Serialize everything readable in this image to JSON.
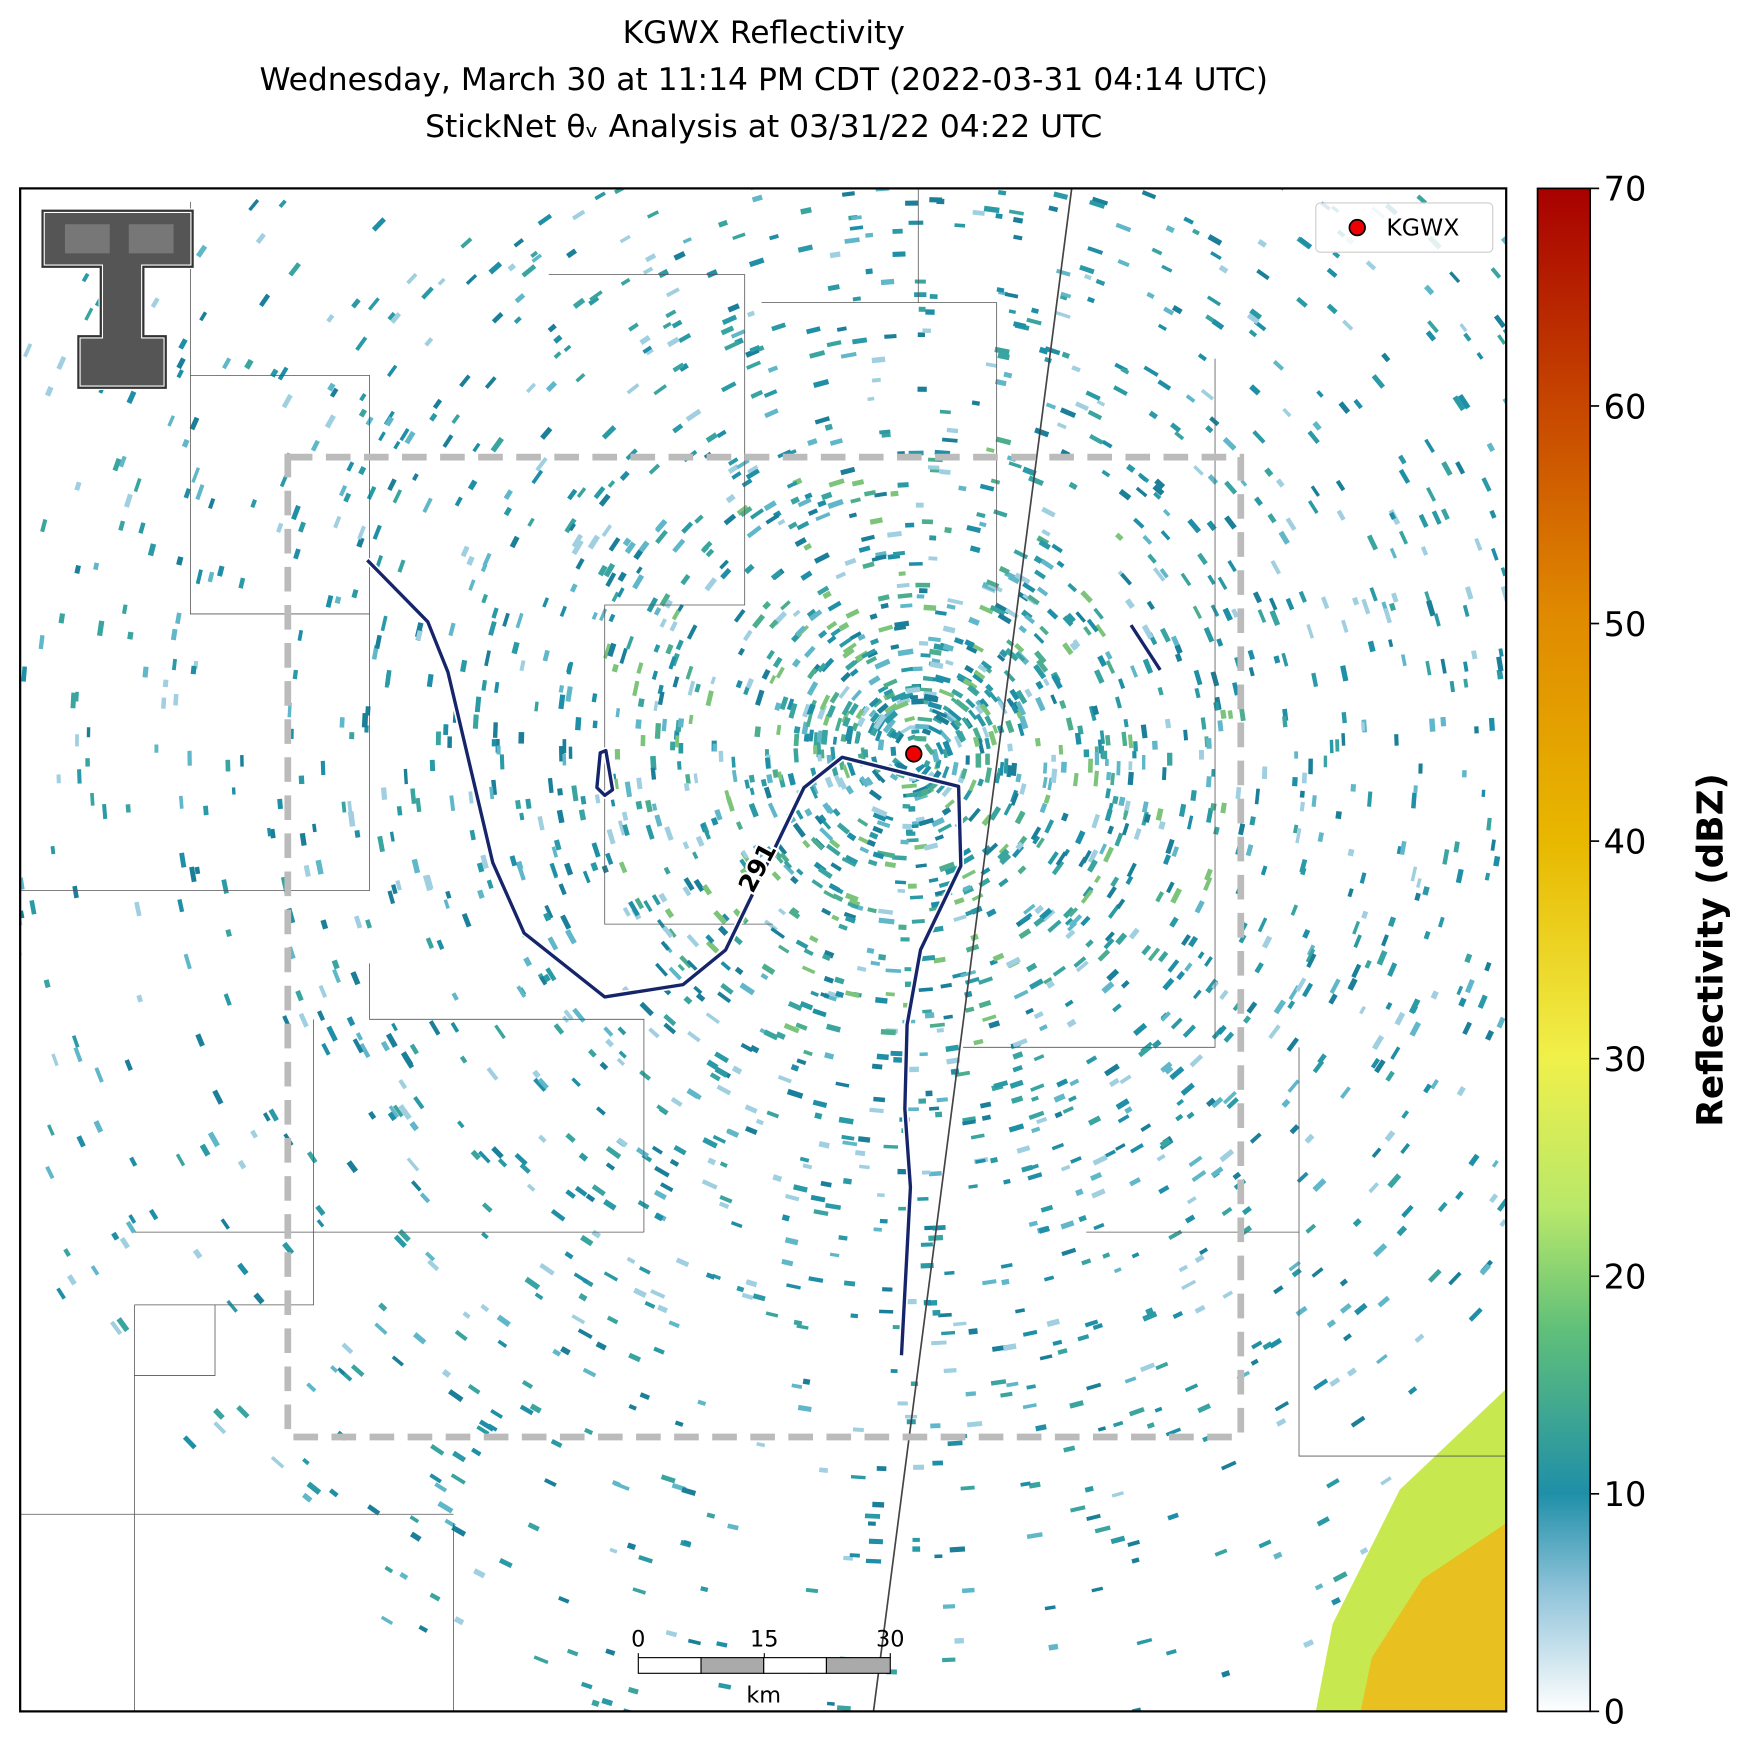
{
  "title": {
    "lines": [
      "KGWX Reflectivity",
      "Wednesday, March 30 at 11:14 PM CDT (2022-03-31 04:14 UTC)",
      "StickNet θᵥ Analysis at 03/31/22 04:22 UTC"
    ]
  },
  "legend": {
    "label": "KGWX"
  },
  "contour": {
    "label": 291
  },
  "scale_bar": {
    "ticks": [
      0,
      15,
      30
    ],
    "lim": [
      0,
      30
    ],
    "unit": "km"
  },
  "colorbar": {
    "label": "Reflectivity (dBZ)",
    "lim": [
      0,
      70
    ],
    "ticks": [
      0,
      10,
      20,
      30,
      40,
      50,
      60,
      70
    ]
  }
}
